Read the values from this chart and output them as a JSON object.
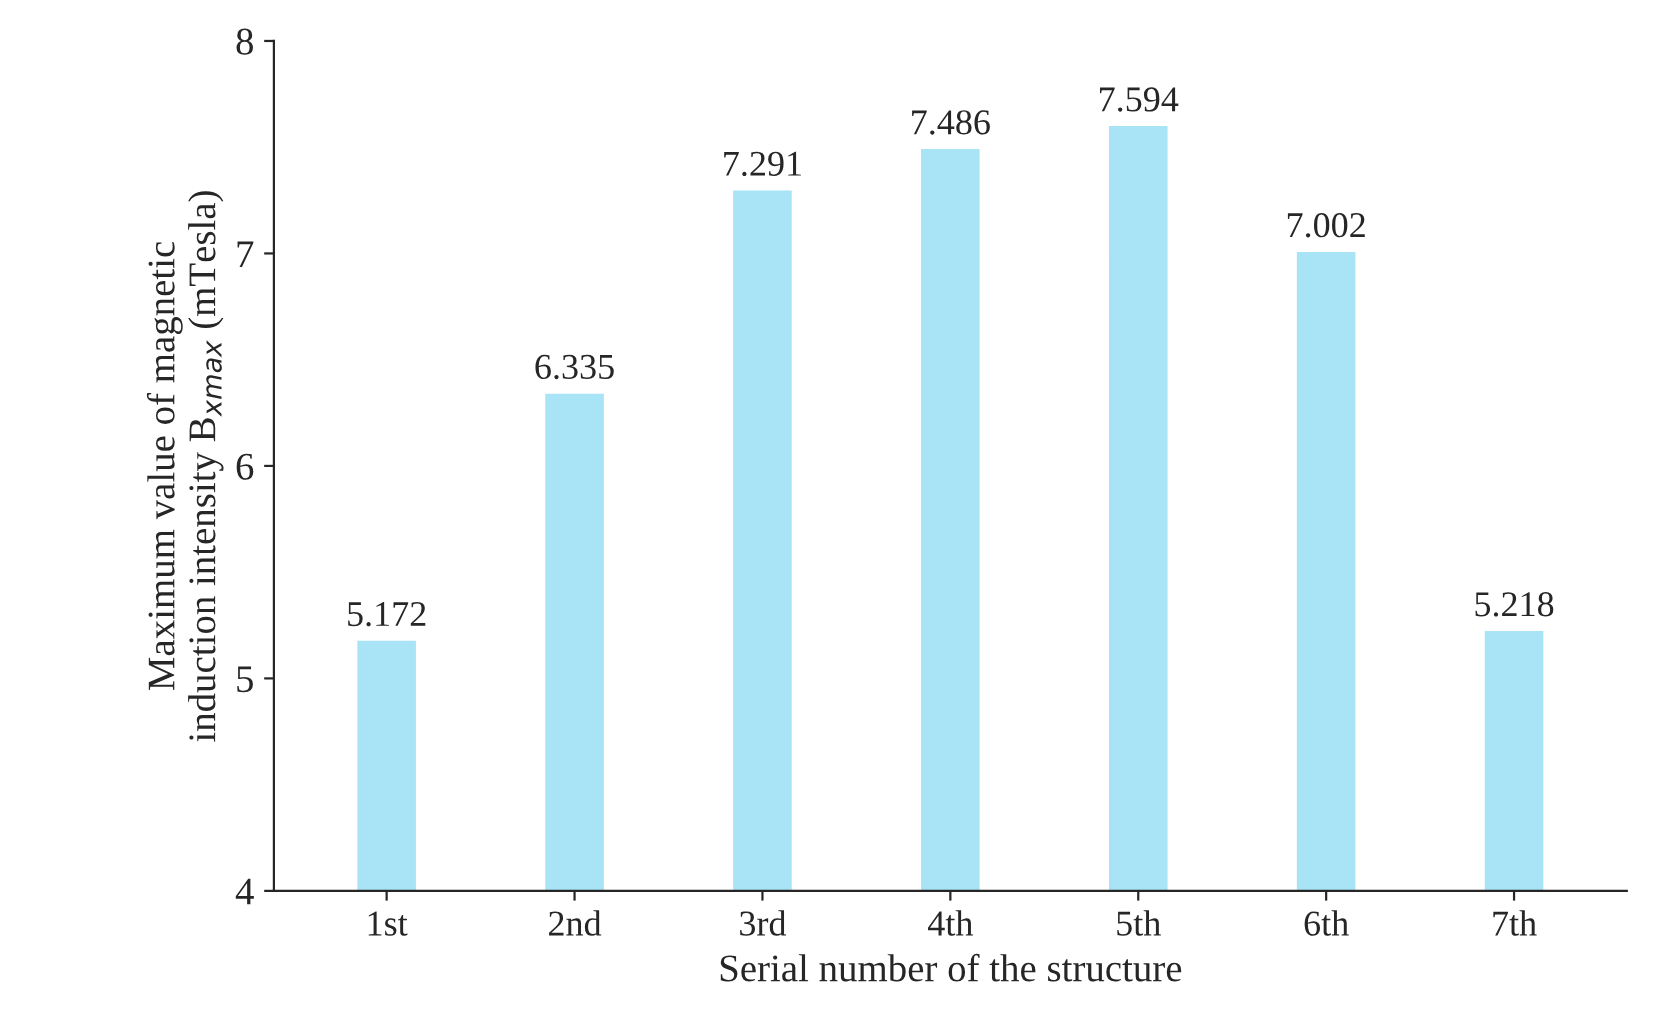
{
  "chart_data": {
    "type": "bar",
    "xlabel": "Serial number of the structure",
    "ylabel": "Maximum value of magnetic\ninduction intensity B$_{xmax}$ (mTesla)",
    "categories": [
      "1st",
      "2nd",
      "3rd",
      "4th",
      "5th",
      "6th",
      "7th"
    ],
    "values": [
      5.172,
      6.335,
      7.291,
      7.486,
      7.594,
      7.002,
      5.218
    ],
    "color": "#a8e4f5",
    "data_labels": true,
    "value_labels": [
      "5.172",
      "6.335",
      "7.291",
      "7.486",
      "7.594",
      "7.002",
      "5.218"
    ],
    "ylim": [
      4,
      8
    ],
    "yticks": [
      4,
      5,
      6,
      7,
      8
    ],
    "grid": false,
    "legend": false
  }
}
